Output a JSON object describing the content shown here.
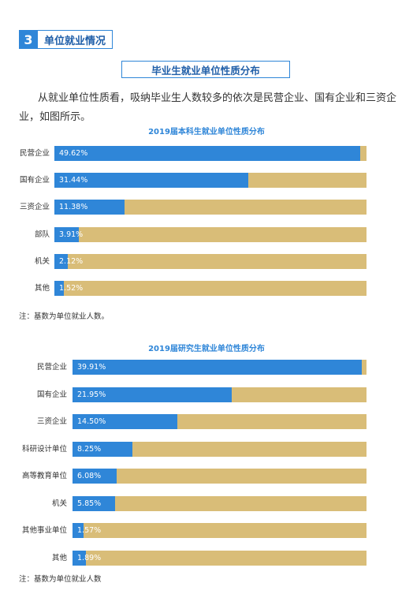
{
  "section": {
    "number": "3",
    "title": "单位就业情况"
  },
  "subheader": "毕业生就业单位性质分布",
  "paragraph": "从就业单位性质看，吸纳毕业生人数较多的依次是民营企业、国有企业和三资企业，如图所示。",
  "colors": {
    "accent": "#2f86d8",
    "remainder": "#d9bd78"
  },
  "chart_data": [
    {
      "type": "bar",
      "orientation": "horizontal",
      "stacked": true,
      "title": "2019届本科生就业单位性质分布",
      "categories": [
        "民营企业",
        "国有企业",
        "三资企业",
        "部队",
        "机关",
        "其他"
      ],
      "values": [
        49.62,
        31.44,
        11.38,
        3.91,
        2.12,
        1.52
      ],
      "value_labels": [
        "49.62%",
        "31.44%",
        "11.38%",
        "3.91%",
        "2.12%",
        "1.52%"
      ],
      "xlim": [
        0,
        50.62
      ],
      "note": "注：基数为单位就业人数。"
    },
    {
      "type": "bar",
      "orientation": "horizontal",
      "stacked": true,
      "title": "2019届研究生就业单位性质分布",
      "categories": [
        "民营企业",
        "国有企业",
        "三资企业",
        "科研设计单位",
        "高等教育单位",
        "机关",
        "其他事业单位",
        "其他"
      ],
      "values": [
        39.91,
        21.95,
        14.5,
        8.25,
        6.08,
        5.85,
        1.57,
        1.89
      ],
      "value_labels": [
        "39.91%",
        "21.95%",
        "14.50%",
        "8.25%",
        "6.08%",
        "5.85%",
        "1.57%",
        "1.89%"
      ],
      "xlim": [
        0,
        40.6
      ],
      "note": "注：基数为单位就业人数"
    }
  ]
}
